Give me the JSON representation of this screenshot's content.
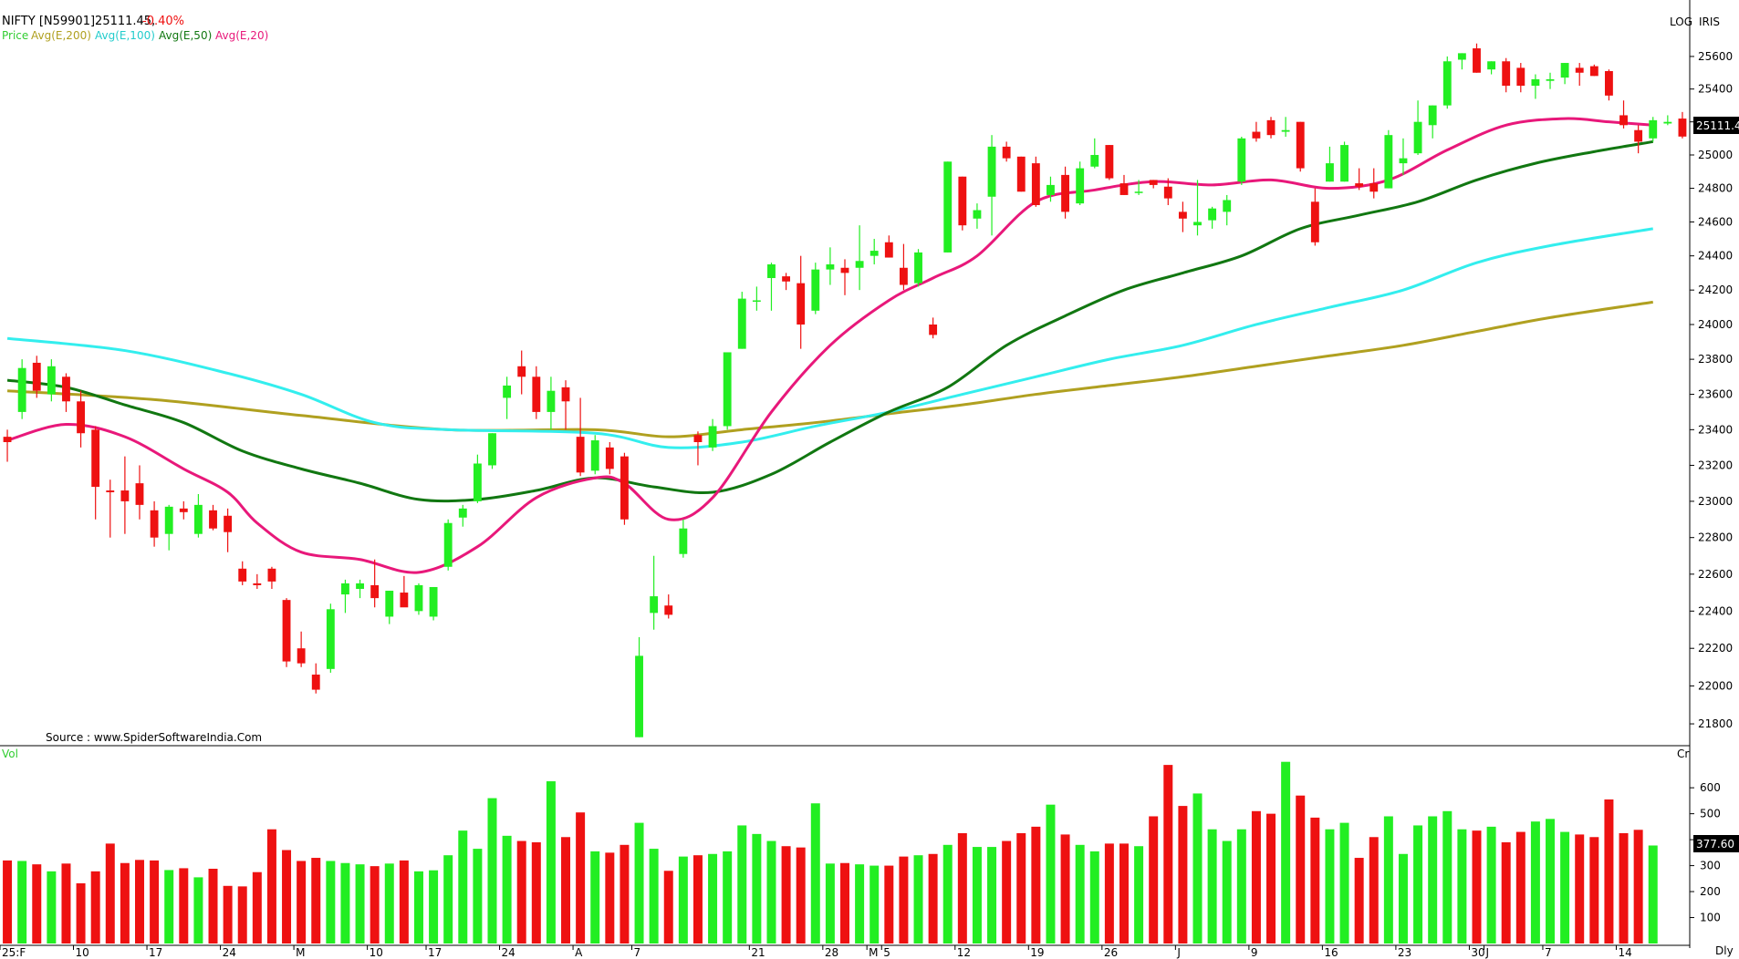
{
  "header": {
    "symbol": "NIFTY [N59901]25111.45,",
    "change": "-0.40%",
    "legend": [
      {
        "label": "Price",
        "color": "#32cd32"
      },
      {
        "label": "Avg(E,200)",
        "color": "#b0a020"
      },
      {
        "label": "Avg(E,100)",
        "color": "#33eeee"
      },
      {
        "label": "Avg(E,50)",
        "color": "#117711"
      },
      {
        "label": "Avg(E,20)",
        "color": "#e8187a"
      }
    ],
    "log_label": "LOG",
    "iris_label": "IRIS",
    "source": "Source : www.SpiderSoftwareIndia.Com",
    "last_price": "25111.4",
    "vol_label": "Vol",
    "vol_unit": "Cr",
    "last_vol": "377.60",
    "period": "Dly"
  },
  "colors": {
    "up": "#22ee22",
    "down": "#ee1111",
    "vol_up": "#22ee22",
    "vol_down": "#ee1111"
  },
  "chart_data": {
    "type": "candlestick",
    "y_scale": "log",
    "price_ylim": [
      21700,
      25780
    ],
    "price_ticks": [
      21800,
      22000,
      22200,
      22400,
      22600,
      22800,
      23000,
      23200,
      23400,
      23600,
      23800,
      24000,
      24200,
      24400,
      24600,
      24800,
      25000,
      25200,
      25400,
      25600
    ],
    "vol_ylim": [
      0,
      720
    ],
    "vol_ticks": [
      100,
      200,
      300,
      400,
      500,
      600
    ],
    "x_labels": [
      {
        "i": 0,
        "label": "25:F"
      },
      {
        "i": 5,
        "label": "10"
      },
      {
        "i": 10,
        "label": "17"
      },
      {
        "i": 15,
        "label": "24"
      },
      {
        "i": 20,
        "label": "M"
      },
      {
        "i": 25,
        "label": "10"
      },
      {
        "i": 29,
        "label": "17"
      },
      {
        "i": 34,
        "label": "24"
      },
      {
        "i": 39,
        "label": "A"
      },
      {
        "i": 43,
        "label": "7"
      },
      {
        "i": 51,
        "label": "21"
      },
      {
        "i": 56,
        "label": "28"
      },
      {
        "i": 59,
        "label": "M"
      },
      {
        "i": 60,
        "label": "5"
      },
      {
        "i": 65,
        "label": "12"
      },
      {
        "i": 70,
        "label": "19"
      },
      {
        "i": 75,
        "label": "26"
      },
      {
        "i": 80,
        "label": "J"
      },
      {
        "i": 85,
        "label": "9"
      },
      {
        "i": 90,
        "label": "16"
      },
      {
        "i": 95,
        "label": "23"
      },
      {
        "i": 100,
        "label": "30"
      },
      {
        "i": 101,
        "label": "J"
      },
      {
        "i": 105,
        "label": "7"
      },
      {
        "i": 110,
        "label": "14"
      }
    ],
    "ohlc": [
      [
        23360,
        23400,
        23220,
        23330
      ],
      [
        23500,
        23800,
        23460,
        23750
      ],
      [
        23780,
        23820,
        23580,
        23620
      ],
      [
        23600,
        23800,
        23560,
        23760
      ],
      [
        23700,
        23720,
        23500,
        23560
      ],
      [
        23560,
        23620,
        23300,
        23380
      ],
      [
        23400,
        23420,
        22900,
        23080
      ],
      [
        23060,
        23120,
        22800,
        23050
      ],
      [
        23060,
        23250,
        22820,
        23000
      ],
      [
        23100,
        23200,
        22900,
        22980
      ],
      [
        22950,
        23000,
        22750,
        22800
      ],
      [
        22820,
        22980,
        22730,
        22970
      ],
      [
        22960,
        23000,
        22900,
        22940
      ],
      [
        22820,
        23040,
        22800,
        22980
      ],
      [
        22950,
        22980,
        22840,
        22850
      ],
      [
        22920,
        22960,
        22720,
        22830
      ],
      [
        22630,
        22670,
        22540,
        22560
      ],
      [
        22550,
        22600,
        22520,
        22540
      ],
      [
        22630,
        22640,
        22520,
        22560
      ],
      [
        22460,
        22470,
        22100,
        22130
      ],
      [
        22200,
        22290,
        22100,
        22120
      ],
      [
        22060,
        22120,
        21960,
        21980
      ],
      [
        22090,
        22440,
        22070,
        22410
      ],
      [
        22490,
        22570,
        22390,
        22550
      ],
      [
        22520,
        22570,
        22470,
        22550
      ],
      [
        22540,
        22680,
        22420,
        22470
      ],
      [
        22370,
        22510,
        22330,
        22510
      ],
      [
        22500,
        22590,
        22440,
        22420
      ],
      [
        22400,
        22550,
        22380,
        22540
      ],
      [
        22370,
        22530,
        22350,
        22530
      ],
      [
        22640,
        22900,
        22620,
        22880
      ],
      [
        22910,
        22980,
        22860,
        22960
      ],
      [
        23000,
        23260,
        22990,
        23210
      ],
      [
        23200,
        23380,
        23180,
        23380
      ],
      [
        23580,
        23700,
        23460,
        23650
      ],
      [
        23760,
        23850,
        23600,
        23700
      ],
      [
        23700,
        23760,
        23460,
        23500
      ],
      [
        23500,
        23700,
        23400,
        23620
      ],
      [
        23640,
        23680,
        23400,
        23560
      ],
      [
        23360,
        23580,
        23140,
        23160
      ],
      [
        23170,
        23370,
        23150,
        23340
      ],
      [
        23300,
        23330,
        23150,
        23180
      ],
      [
        23250,
        23270,
        22870,
        22900
      ],
      [
        21730,
        22260,
        21730,
        22160
      ],
      [
        22390,
        22700,
        22300,
        22480
      ],
      [
        22430,
        22490,
        22360,
        22380
      ],
      [
        22710,
        22900,
        22690,
        22850
      ],
      [
        23370,
        23390,
        23200,
        23330
      ],
      [
        23300,
        23460,
        23280,
        23420
      ],
      [
        23420,
        23830,
        23400,
        23840
      ],
      [
        23860,
        24190,
        23860,
        24150
      ],
      [
        24140,
        24220,
        24080,
        24140
      ],
      [
        24270,
        24360,
        24080,
        24350
      ],
      [
        24280,
        24300,
        24200,
        24250
      ],
      [
        24240,
        24400,
        23860,
        24000
      ],
      [
        24080,
        24360,
        24060,
        24320
      ],
      [
        24320,
        24450,
        24230,
        24350
      ],
      [
        24330,
        24380,
        24170,
        24300
      ],
      [
        24330,
        24580,
        24200,
        24370
      ],
      [
        24400,
        24500,
        24350,
        24430
      ],
      [
        24480,
        24520,
        24390,
        24390
      ],
      [
        24330,
        24470,
        24200,
        24230
      ],
      [
        24240,
        24440,
        24220,
        24420
      ],
      [
        24000,
        24040,
        23920,
        23940
      ],
      [
        24420,
        24960,
        24420,
        24960
      ],
      [
        24870,
        24870,
        24550,
        24580
      ],
      [
        24620,
        24710,
        24560,
        24670
      ],
      [
        24750,
        25120,
        24520,
        25050
      ],
      [
        25050,
        25080,
        24960,
        24980
      ],
      [
        24990,
        24990,
        24780,
        24780
      ],
      [
        24950,
        24990,
        24690,
        24700
      ],
      [
        24760,
        24870,
        24720,
        24820
      ],
      [
        24880,
        24930,
        24620,
        24660
      ],
      [
        24710,
        24960,
        24700,
        24920
      ],
      [
        24930,
        25100,
        24920,
        25000
      ],
      [
        25060,
        25060,
        24850,
        24860
      ],
      [
        24830,
        24880,
        24760,
        24760
      ],
      [
        24780,
        24850,
        24760,
        24780
      ],
      [
        24850,
        24850,
        24800,
        24820
      ],
      [
        24810,
        24860,
        24700,
        24740
      ],
      [
        24660,
        24720,
        24540,
        24620
      ],
      [
        24580,
        24850,
        24520,
        24600
      ],
      [
        24610,
        24690,
        24560,
        24680
      ],
      [
        24660,
        24760,
        24580,
        24730
      ],
      [
        24840,
        25110,
        24820,
        25100
      ],
      [
        25140,
        25200,
        25080,
        25100
      ],
      [
        25210,
        25230,
        25100,
        25120
      ],
      [
        25140,
        25230,
        25110,
        25150
      ],
      [
        25200,
        25200,
        24900,
        24920
      ],
      [
        24720,
        24800,
        24460,
        24480
      ],
      [
        24840,
        25050,
        24840,
        24950
      ],
      [
        24840,
        25080,
        24840,
        25060
      ],
      [
        24830,
        24920,
        24790,
        24810
      ],
      [
        24830,
        24920,
        24740,
        24780
      ],
      [
        24800,
        25150,
        24800,
        25120
      ],
      [
        24950,
        25100,
        24880,
        24980
      ],
      [
        25010,
        25330,
        25000,
        25200
      ],
      [
        25180,
        25300,
        25100,
        25300
      ],
      [
        25300,
        25600,
        25280,
        25570
      ],
      [
        25580,
        25620,
        25520,
        25620
      ],
      [
        25650,
        25680,
        25500,
        25500
      ],
      [
        25520,
        25570,
        25490,
        25570
      ],
      [
        25570,
        25590,
        25380,
        25420
      ],
      [
        25530,
        25560,
        25380,
        25420
      ],
      [
        25420,
        25490,
        25340,
        25460
      ],
      [
        25450,
        25500,
        25400,
        25460
      ],
      [
        25470,
        25560,
        25430,
        25560
      ],
      [
        25530,
        25560,
        25420,
        25500
      ],
      [
        25540,
        25550,
        25480,
        25480
      ],
      [
        25510,
        25520,
        25330,
        25360
      ],
      [
        25240,
        25330,
        25160,
        25180
      ],
      [
        25150,
        25180,
        25010,
        25080
      ],
      [
        25100,
        25230,
        25080,
        25210
      ],
      [
        25190,
        25240,
        25180,
        25200
      ],
      [
        25220,
        25260,
        25100,
        25111
      ]
    ],
    "volume": [
      320,
      318,
      305,
      278,
      308,
      232,
      278,
      385,
      310,
      322,
      320,
      283,
      290,
      255,
      288,
      222,
      220,
      275,
      440,
      360,
      318,
      330,
      318,
      310,
      305,
      298,
      308,
      320,
      278,
      282,
      340,
      435,
      365,
      560,
      415,
      395,
      390,
      625,
      410,
      505,
      355,
      350,
      380,
      465,
      365,
      280,
      335,
      340,
      345,
      355,
      455,
      422,
      395,
      375,
      370,
      540,
      308,
      310,
      305,
      300,
      300,
      335,
      340,
      345,
      380,
      425,
      372,
      372,
      395,
      425,
      450,
      535,
      420,
      380,
      355,
      385,
      385,
      375,
      490,
      688,
      530,
      578,
      440,
      395,
      440,
      510,
      500,
      700,
      570,
      485,
      440,
      465,
      330,
      410,
      490,
      345,
      455,
      490,
      510,
      440,
      435,
      450,
      390,
      430,
      470,
      480,
      430,
      420,
      410,
      555,
      425,
      438,
      377.6
    ],
    "series": [
      {
        "name": "Avg(E,200)",
        "color": "#b0a020",
        "points": [
          [
            0,
            23620
          ],
          [
            10,
            23570
          ],
          [
            20,
            23480
          ],
          [
            30,
            23400
          ],
          [
            40,
            23400
          ],
          [
            45,
            23360
          ],
          [
            50,
            23400
          ],
          [
            55,
            23440
          ],
          [
            60,
            23490
          ],
          [
            65,
            23540
          ],
          [
            70,
            23600
          ],
          [
            75,
            23650
          ],
          [
            80,
            23700
          ],
          [
            85,
            23760
          ],
          [
            90,
            23820
          ],
          [
            95,
            23880
          ],
          [
            100,
            23960
          ],
          [
            105,
            24040
          ],
          [
            112,
            24130
          ]
        ]
      },
      {
        "name": "Avg(E,100)",
        "color": "#33eeee",
        "points": [
          [
            0,
            23920
          ],
          [
            8,
            23850
          ],
          [
            15,
            23720
          ],
          [
            20,
            23600
          ],
          [
            25,
            23440
          ],
          [
            30,
            23400
          ],
          [
            40,
            23380
          ],
          [
            45,
            23300
          ],
          [
            50,
            23330
          ],
          [
            55,
            23420
          ],
          [
            60,
            23500
          ],
          [
            65,
            23600
          ],
          [
            70,
            23700
          ],
          [
            75,
            23800
          ],
          [
            80,
            23880
          ],
          [
            85,
            24000
          ],
          [
            90,
            24100
          ],
          [
            95,
            24200
          ],
          [
            100,
            24360
          ],
          [
            105,
            24460
          ],
          [
            112,
            24560
          ]
        ]
      },
      {
        "name": "Avg(E,50)",
        "color": "#117711",
        "points": [
          [
            0,
            23680
          ],
          [
            4,
            23640
          ],
          [
            8,
            23540
          ],
          [
            12,
            23440
          ],
          [
            16,
            23280
          ],
          [
            20,
            23180
          ],
          [
            24,
            23100
          ],
          [
            28,
            23010
          ],
          [
            32,
            23010
          ],
          [
            36,
            23060
          ],
          [
            40,
            23130
          ],
          [
            44,
            23080
          ],
          [
            48,
            23050
          ],
          [
            52,
            23150
          ],
          [
            56,
            23330
          ],
          [
            60,
            23500
          ],
          [
            64,
            23640
          ],
          [
            68,
            23880
          ],
          [
            72,
            24050
          ],
          [
            76,
            24200
          ],
          [
            80,
            24300
          ],
          [
            84,
            24400
          ],
          [
            88,
            24560
          ],
          [
            92,
            24640
          ],
          [
            96,
            24720
          ],
          [
            100,
            24850
          ],
          [
            104,
            24950
          ],
          [
            108,
            25020
          ],
          [
            112,
            25080
          ]
        ]
      },
      {
        "name": "Avg(E,20)",
        "color": "#e8187a",
        "points": [
          [
            0,
            23340
          ],
          [
            4,
            23430
          ],
          [
            8,
            23360
          ],
          [
            12,
            23180
          ],
          [
            15,
            23050
          ],
          [
            17,
            22880
          ],
          [
            20,
            22720
          ],
          [
            24,
            22680
          ],
          [
            28,
            22610
          ],
          [
            32,
            22750
          ],
          [
            36,
            23020
          ],
          [
            40,
            23130
          ],
          [
            42,
            23100
          ],
          [
            45,
            22900
          ],
          [
            48,
            23020
          ],
          [
            52,
            23500
          ],
          [
            56,
            23880
          ],
          [
            60,
            24140
          ],
          [
            63,
            24270
          ],
          [
            66,
            24400
          ],
          [
            70,
            24720
          ],
          [
            74,
            24790
          ],
          [
            78,
            24840
          ],
          [
            82,
            24820
          ],
          [
            86,
            24850
          ],
          [
            90,
            24800
          ],
          [
            94,
            24850
          ],
          [
            98,
            25030
          ],
          [
            102,
            25180
          ],
          [
            106,
            25220
          ],
          [
            109,
            25200
          ],
          [
            112,
            25180
          ]
        ]
      }
    ]
  }
}
